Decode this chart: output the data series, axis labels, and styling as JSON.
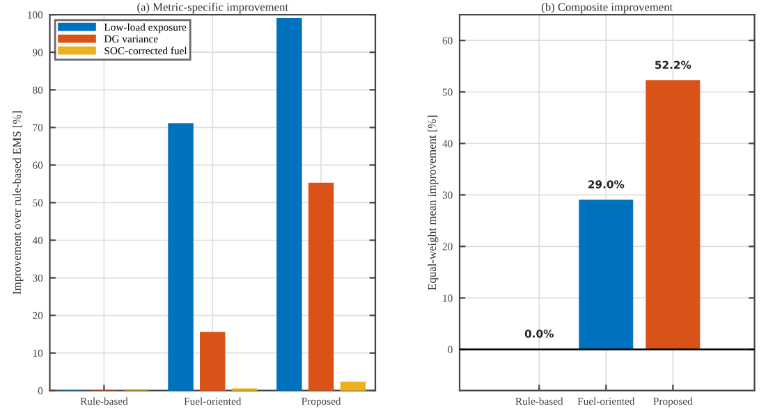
{
  "chart_data": [
    {
      "type": "bar",
      "title": "(a) Metric-specific improvement",
      "ylabel": "Improvement over rule-based EMS [%]",
      "categories": [
        "Rule-based",
        "Fuel-oriented",
        "Proposed"
      ],
      "series": [
        {
          "name": "Low-load exposure",
          "color": "#0072bd",
          "values": [
            0,
            71,
            99
          ]
        },
        {
          "name": "DG variance",
          "color": "#d95319",
          "values": [
            0,
            15.5,
            55.2
          ]
        },
        {
          "name": "SOC-corrected fuel",
          "color": "#edb120",
          "values": [
            0,
            0.5,
            2.3
          ]
        }
      ],
      "ylim": [
        0,
        100
      ],
      "yticks": [
        0,
        10,
        20,
        30,
        40,
        50,
        60,
        70,
        80,
        90,
        100
      ],
      "grid": true,
      "legend": "top left"
    },
    {
      "type": "bar",
      "title": "(b) Composite improvement",
      "ylabel": "Equal-weight mean improvement [%]",
      "categories": [
        "Rule-based",
        "Fuel-oriented",
        "Proposed"
      ],
      "values": [
        0.0,
        29.0,
        52.2
      ],
      "colors": [
        "#0072bd",
        "#0072bd",
        "#d95319"
      ],
      "value_labels": [
        "0.0%",
        "29.0%",
        "52.2%"
      ],
      "ylim": [
        -8,
        65
      ],
      "yticks": [
        0,
        10,
        20,
        30,
        40,
        50,
        60
      ],
      "grid": true,
      "ref_lines": [
        {
          "axis": "y",
          "value": 0,
          "color": "#000000"
        }
      ]
    }
  ]
}
